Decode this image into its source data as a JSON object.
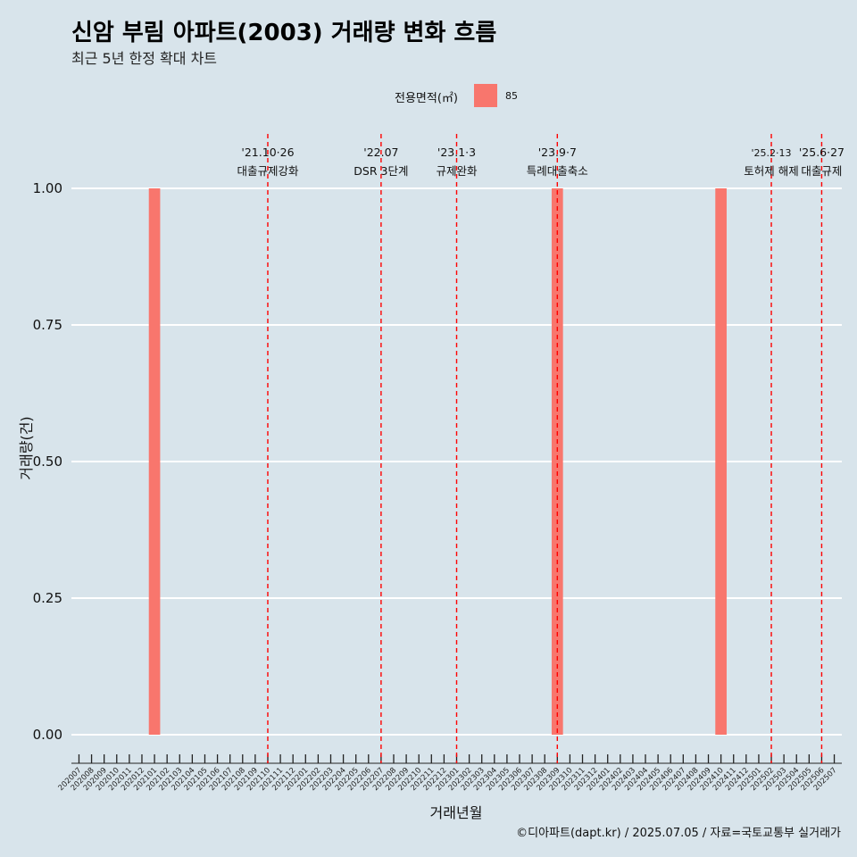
{
  "title": "신암 부림 아파트(2003) 거래량 변화 흐름",
  "subtitle": "최근 5년 한정 확대 차트",
  "caption": "©디아파트(dapt.kr) / 2025.07.05 / 자료=국토교통부 실거래가",
  "legend": {
    "title": "전용면적(㎡)",
    "label": "85",
    "color": "#f8766d"
  },
  "colors": {
    "background": "#d8e4eb",
    "bar": "#f8766d",
    "event_line": "#ff0000",
    "grid": "#ffffff"
  },
  "chart_data": {
    "type": "bar",
    "xlabel": "거래년월",
    "ylabel": "거래량(건)",
    "ylim": [
      0,
      1
    ],
    "y_ticks": [
      "0.00",
      "0.25",
      "0.50",
      "0.75",
      "1.00"
    ],
    "grid": true,
    "legend_position": "top",
    "categories": [
      "202007",
      "202008",
      "202009",
      "202010",
      "202011",
      "202012",
      "202101",
      "202102",
      "202103",
      "202104",
      "202105",
      "202106",
      "202107",
      "202108",
      "202109",
      "202110",
      "202111",
      "202112",
      "202201",
      "202202",
      "202203",
      "202204",
      "202205",
      "202206",
      "202207",
      "202208",
      "202209",
      "202210",
      "202211",
      "202212",
      "202301",
      "202302",
      "202303",
      "202304",
      "202305",
      "202306",
      "202307",
      "202308",
      "202309",
      "202310",
      "202311",
      "202312",
      "202401",
      "202402",
      "202403",
      "202404",
      "202405",
      "202406",
      "202407",
      "202408",
      "202409",
      "202410",
      "202411",
      "202412",
      "202501",
      "202502",
      "202503",
      "202504",
      "202505",
      "202506",
      "202507"
    ],
    "series": [
      {
        "name": "85",
        "values": [
          0,
          0,
          0,
          0,
          0,
          0,
          1,
          0,
          0,
          0,
          0,
          0,
          0,
          0,
          0,
          0,
          0,
          0,
          0,
          0,
          0,
          0,
          0,
          0,
          0,
          0,
          0,
          0,
          0,
          0,
          0,
          0,
          0,
          0,
          0,
          0,
          0,
          0,
          1,
          0,
          0,
          0,
          0,
          0,
          0,
          0,
          0,
          0,
          0,
          0,
          0,
          1,
          0,
          0,
          0,
          0,
          0,
          0,
          0,
          0,
          0
        ]
      }
    ],
    "annotations": [
      {
        "date": "'21.10·26",
        "label": "대출규제강화",
        "x": "202110"
      },
      {
        "date": "'22.07",
        "label": "DSR 3단계",
        "x": "202207"
      },
      {
        "date": "'23.1·3",
        "label": "규제완화",
        "x": "202301"
      },
      {
        "date": "'23.9·7",
        "label": "특례대출축소",
        "x": "202309"
      },
      {
        "date": "'25.2·13",
        "label": "토허제 해제",
        "x": "202502"
      },
      {
        "date": "'25.6·27",
        "label": "대출규제",
        "x": "202506"
      }
    ]
  }
}
